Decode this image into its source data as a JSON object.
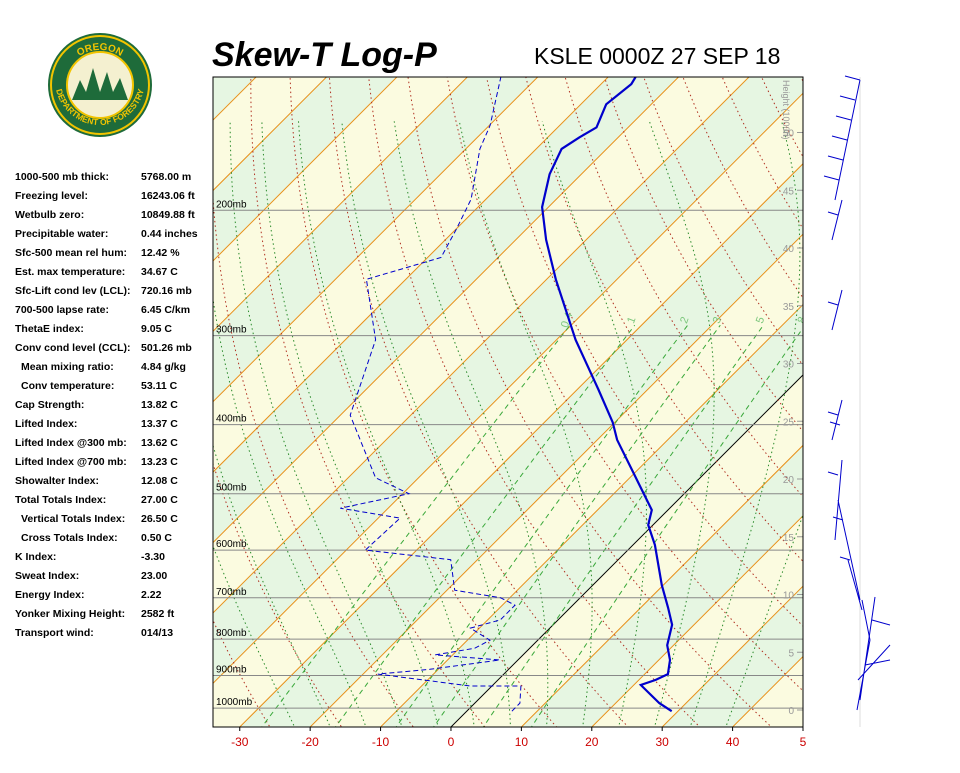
{
  "header": {
    "logo_top": "OREGON",
    "logo_bottom": "DEPARTMENT OF FORESTRY"
  },
  "indices": [
    {
      "label": "1000-500 mb thick:",
      "value": "5768.00 m"
    },
    {
      "label": "Freezing level:",
      "value": "16243.06 ft"
    },
    {
      "label": "Wetbulb zero:",
      "value": "10849.88 ft"
    },
    {
      "label": "Precipitable water:",
      "value": "0.44 inches"
    },
    {
      "label": "Sfc-500 mean rel hum:",
      "value": "12.42 %"
    },
    {
      "label": "Est. max temperature:",
      "value": "34.67 C"
    },
    {
      "label": "Sfc-Lift cond lev (LCL):",
      "value": "720.16 mb"
    },
    {
      "label": "700-500 lapse rate:",
      "value": "6.45 C/km"
    },
    {
      "label": "ThetaE index:",
      "value": "9.05 C"
    },
    {
      "label": "Conv cond level (CCL):",
      "value": "501.26 mb"
    },
    {
      "label": "Mean mixing ratio:",
      "value": "4.84 g/kg",
      "indent": true
    },
    {
      "label": "Conv temperature:",
      "value": "53.11 C",
      "indent": true
    },
    {
      "label": "Cap Strength:",
      "value": "13.82 C"
    },
    {
      "label": "Lifted Index:",
      "value": "13.37 C"
    },
    {
      "label": "Lifted Index @300 mb:",
      "value": "13.62 C"
    },
    {
      "label": "Lifted Index @700 mb:",
      "value": "13.23 C"
    },
    {
      "label": "Showalter Index:",
      "value": "12.08 C"
    },
    {
      "label": "Total Totals Index:",
      "value": "27.00 C"
    },
    {
      "label": "Vertical Totals Index:",
      "value": "26.50 C",
      "indent": true
    },
    {
      "label": "Cross Totals Index:",
      "value": "0.50 C",
      "indent": true
    },
    {
      "label": "K Index:",
      "value": "-3.30"
    },
    {
      "label": "Sweat Index:",
      "value": "23.00"
    },
    {
      "label": "Energy Index:",
      "value": "2.22"
    },
    {
      "label": "Yonker Mixing Height:",
      "value": "2582 ft"
    },
    {
      "label": "Transport wind:",
      "value": "014/13"
    }
  ],
  "chart_data": {
    "type": "skewt",
    "title": "Skew-T Log-P",
    "subtitle": "KSLE 0000Z 27 SEP 18",
    "xlim": [
      -33.8,
      50
    ],
    "ylim": [
      1063,
      130
    ],
    "xticks": [
      -30,
      -20,
      -10,
      0,
      10,
      20,
      30,
      40,
      {
        "value": 50,
        "label": "5"
      }
    ],
    "yticks": [
      {
        "value": 1000,
        "label": "1000mb"
      },
      {
        "value": 900,
        "label": "900mb"
      },
      {
        "value": 800,
        "label": "800mb"
      },
      {
        "value": 700,
        "label": "700mb"
      },
      {
        "value": 600,
        "label": "600mb"
      },
      {
        "value": 500,
        "label": "500mb"
      },
      {
        "value": 400,
        "label": "400mb"
      },
      {
        "value": 300,
        "label": "300mb"
      },
      {
        "value": 200,
        "label": "200mb"
      }
    ],
    "height_label": "Height (1000ft)",
    "height_ticks": [
      0,
      5,
      10,
      15,
      20,
      25,
      30,
      35,
      40,
      45,
      50
    ],
    "mixing_ratio_labels": [
      0.4,
      1,
      2,
      3,
      5,
      8
    ],
    "temperature": {
      "color": "#0000cc",
      "pressure": [
        1010,
        984,
        928,
        913,
        896,
        856,
        816,
        764,
        723,
        672,
        590,
        553,
        527,
        420,
        397,
        357,
        304,
        250,
        220,
        198,
        178,
        164,
        158,
        153,
        142,
        133,
        130
      ],
      "values": [
        29.1,
        26.2,
        21.0,
        22.4,
        23.3,
        21.6,
        19.1,
        16.9,
        13.9,
        9.8,
        3.1,
        -0.7,
        -2.3,
        -17.2,
        -20.3,
        -27.0,
        -37.3,
        -48.7,
        -55.7,
        -60.9,
        -64.5,
        -66.4,
        -65.5,
        -64.5,
        -66.4,
        -65.7,
        -66.1
      ]
    },
    "dewpoint": {
      "color": "#0000cc",
      "pressure": [
        1010,
        984,
        931,
        931,
        896,
        882,
        856,
        842,
        824,
        803,
        772,
        752,
        717,
        700,
        683,
        619,
        600,
        541,
        524,
        500,
        475,
        388,
        304,
        250,
        233,
        213,
        193,
        164,
        152,
        129
      ],
      "values": [
        6.4,
        6.4,
        4.1,
        -3.1,
        -17.9,
        -11.2,
        -2.6,
        -12.5,
        -7.8,
        -6.8,
        -11.3,
        -8.2,
        -8.2,
        -11.3,
        -18.9,
        -23.8,
        -37.3,
        -36.9,
        -46.8,
        -39.1,
        -46.1,
        -58.6,
        -65.7,
        -75.6,
        -68.1,
        -69.9,
        -72.1,
        -78.0,
        -79.9,
        -85.5
      ]
    }
  }
}
